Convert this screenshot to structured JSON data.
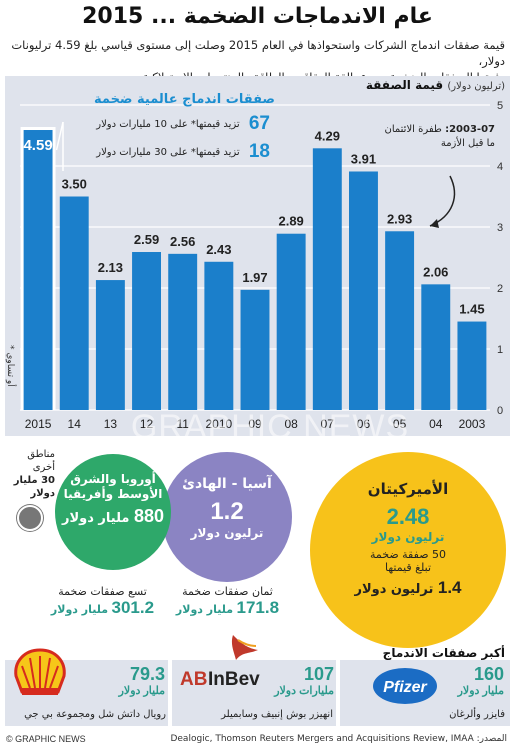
{
  "title": "2015 ... عام الاندماجات الضخمة",
  "subtitle_line1": "قيمة صفقات اندماج الشركات واستحواذها في العام 2015 وصلت إلى مستوى قياسي بلغ 4.59 ترليونات دولار،",
  "subtitle_line2": "دفعتها الصفقات الضخمة بين عمالقة العقاقير والطاقة والمنتوجات الاستهلاكية",
  "chart_data": {
    "type": "bar",
    "title": "قيمة الصفقة",
    "ylabel": "(ترليون دولار)",
    "categories": [
      "2015",
      "14",
      "13",
      "12",
      "11",
      "2010",
      "09",
      "08",
      "07",
      "06",
      "05",
      "04",
      "2003"
    ],
    "values": [
      4.59,
      3.5,
      2.13,
      2.59,
      2.56,
      2.43,
      1.97,
      2.89,
      4.29,
      3.91,
      2.93,
      2.06,
      1.45
    ],
    "value_labels": [
      "4.59",
      "3.50",
      "2.13",
      "2.59",
      "2.56",
      "2.43",
      "1.97",
      "2.89",
      "4.29",
      "3.91",
      "2.93",
      "2.06",
      "1.45"
    ],
    "highlight_index": 0,
    "ylim": [
      0,
      5
    ],
    "yticks": [
      0,
      1,
      2,
      3,
      4,
      5
    ],
    "grid": true,
    "bar_color": "#1b7fcb",
    "highlight_color": "#1b7fcb",
    "text_color": "#2a9a8c"
  },
  "mega_deals": {
    "title": "صفقات اندماج عالمية ضخمة",
    "row1_value": "67",
    "row1_text": "تزيد قيمتها* على 10 مليارات دولار",
    "row2_value": "18",
    "row2_text": "تزيد قيمتها* على 30 مليارات دولار"
  },
  "crisis_note_period": "2003-07:",
  "crisis_note_text": "طفرة الائتمان ما قبل الأزمة",
  "footnote": "* أو تساوي",
  "watermark": "GRAPHIC NEWS",
  "regions": {
    "us": {
      "name": "الأميركيتان",
      "value": "2.48",
      "unit": "ترليون دولار",
      "count_text": "50 صفقة ضخمة",
      "worth_label": "تبلغ قيمتها",
      "worth_value": "1.4",
      "worth_unit": "ترليون دولار",
      "color": "#f7c21a"
    },
    "asia": {
      "name": "آسيا - الهادئ",
      "value": "1.2",
      "unit": "ترليون دولار",
      "count_text": "ثمان صفقات ضخمة",
      "worth_value": "171.8",
      "worth_unit": "مليار دولار",
      "color": "#8b84c3"
    },
    "emea": {
      "name": "أوروبا والشرق الأوسط وأفريقيا",
      "value": "880",
      "unit": "مليار دولار",
      "count_text": "تسع صفقات ضخمة",
      "worth_value": "301.2",
      "worth_unit": "مليار دولار",
      "color": "#2ea86a"
    },
    "other": {
      "name": "مناطق أخرى",
      "value": "30 مليار دولار",
      "color": "#777777"
    }
  },
  "top_deals": {
    "title": "أكبر صفقات الاندماج والاستحواذ",
    "items": [
      {
        "logo": "Pfizer",
        "value": "160",
        "unit": "مليار دولار",
        "names": "فايزر وألرغان"
      },
      {
        "logo": "ABInBev",
        "value": "107",
        "unit": "مليارات دولار",
        "names": "انهيزر بوش إنبيف وسابميلر"
      },
      {
        "logo": "Shell",
        "value": "79.3",
        "unit": "مليار دولار",
        "names": "رويال داتش شل ومجموعة بي جي"
      }
    ]
  },
  "credit": "© GRAPHIC NEWS",
  "source": "المصدر: Dealogic, Thomson Reuters Mergers and Acquisitions Review, IMAA"
}
